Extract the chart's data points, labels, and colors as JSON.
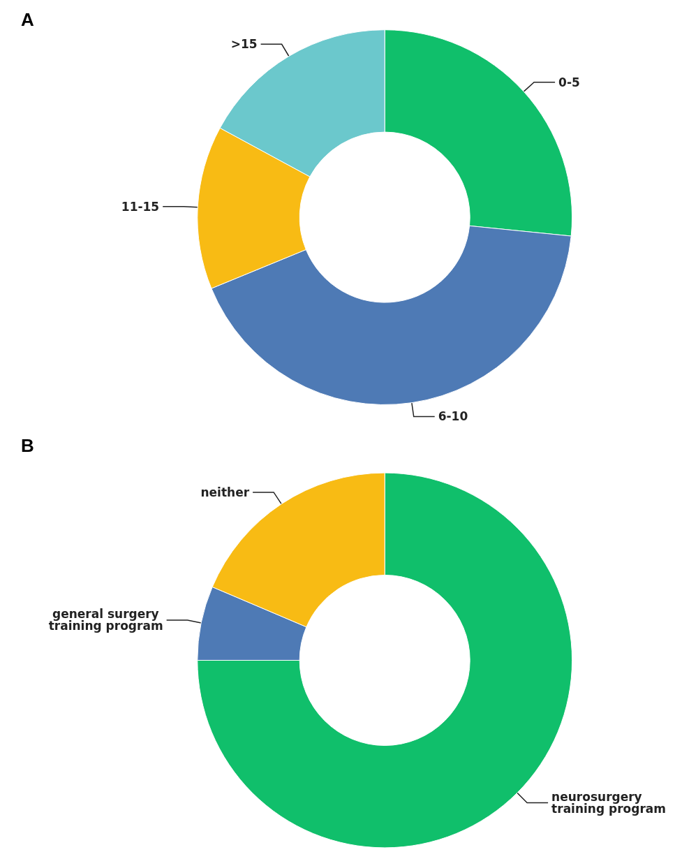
{
  "chart_data": [
    {
      "type": "donut",
      "title": "A",
      "categories": [
        "0-5",
        "6-10",
        "11-15",
        ">15"
      ],
      "values": [
        26.6,
        42.2,
        14.1,
        17.1
      ],
      "colors": [
        "#10bf6b",
        "#4e7ab5",
        "#f8bb14",
        "#6bc8cc"
      ],
      "legend": false
    },
    {
      "type": "donut",
      "title": "B",
      "categories": [
        "neurosurgery training program",
        "general surgery training program",
        "neither"
      ],
      "values": [
        75,
        6.4,
        18.6
      ],
      "colors": [
        "#10bf6b",
        "#4e7ab5",
        "#f8bb14"
      ],
      "legend": false
    }
  ]
}
